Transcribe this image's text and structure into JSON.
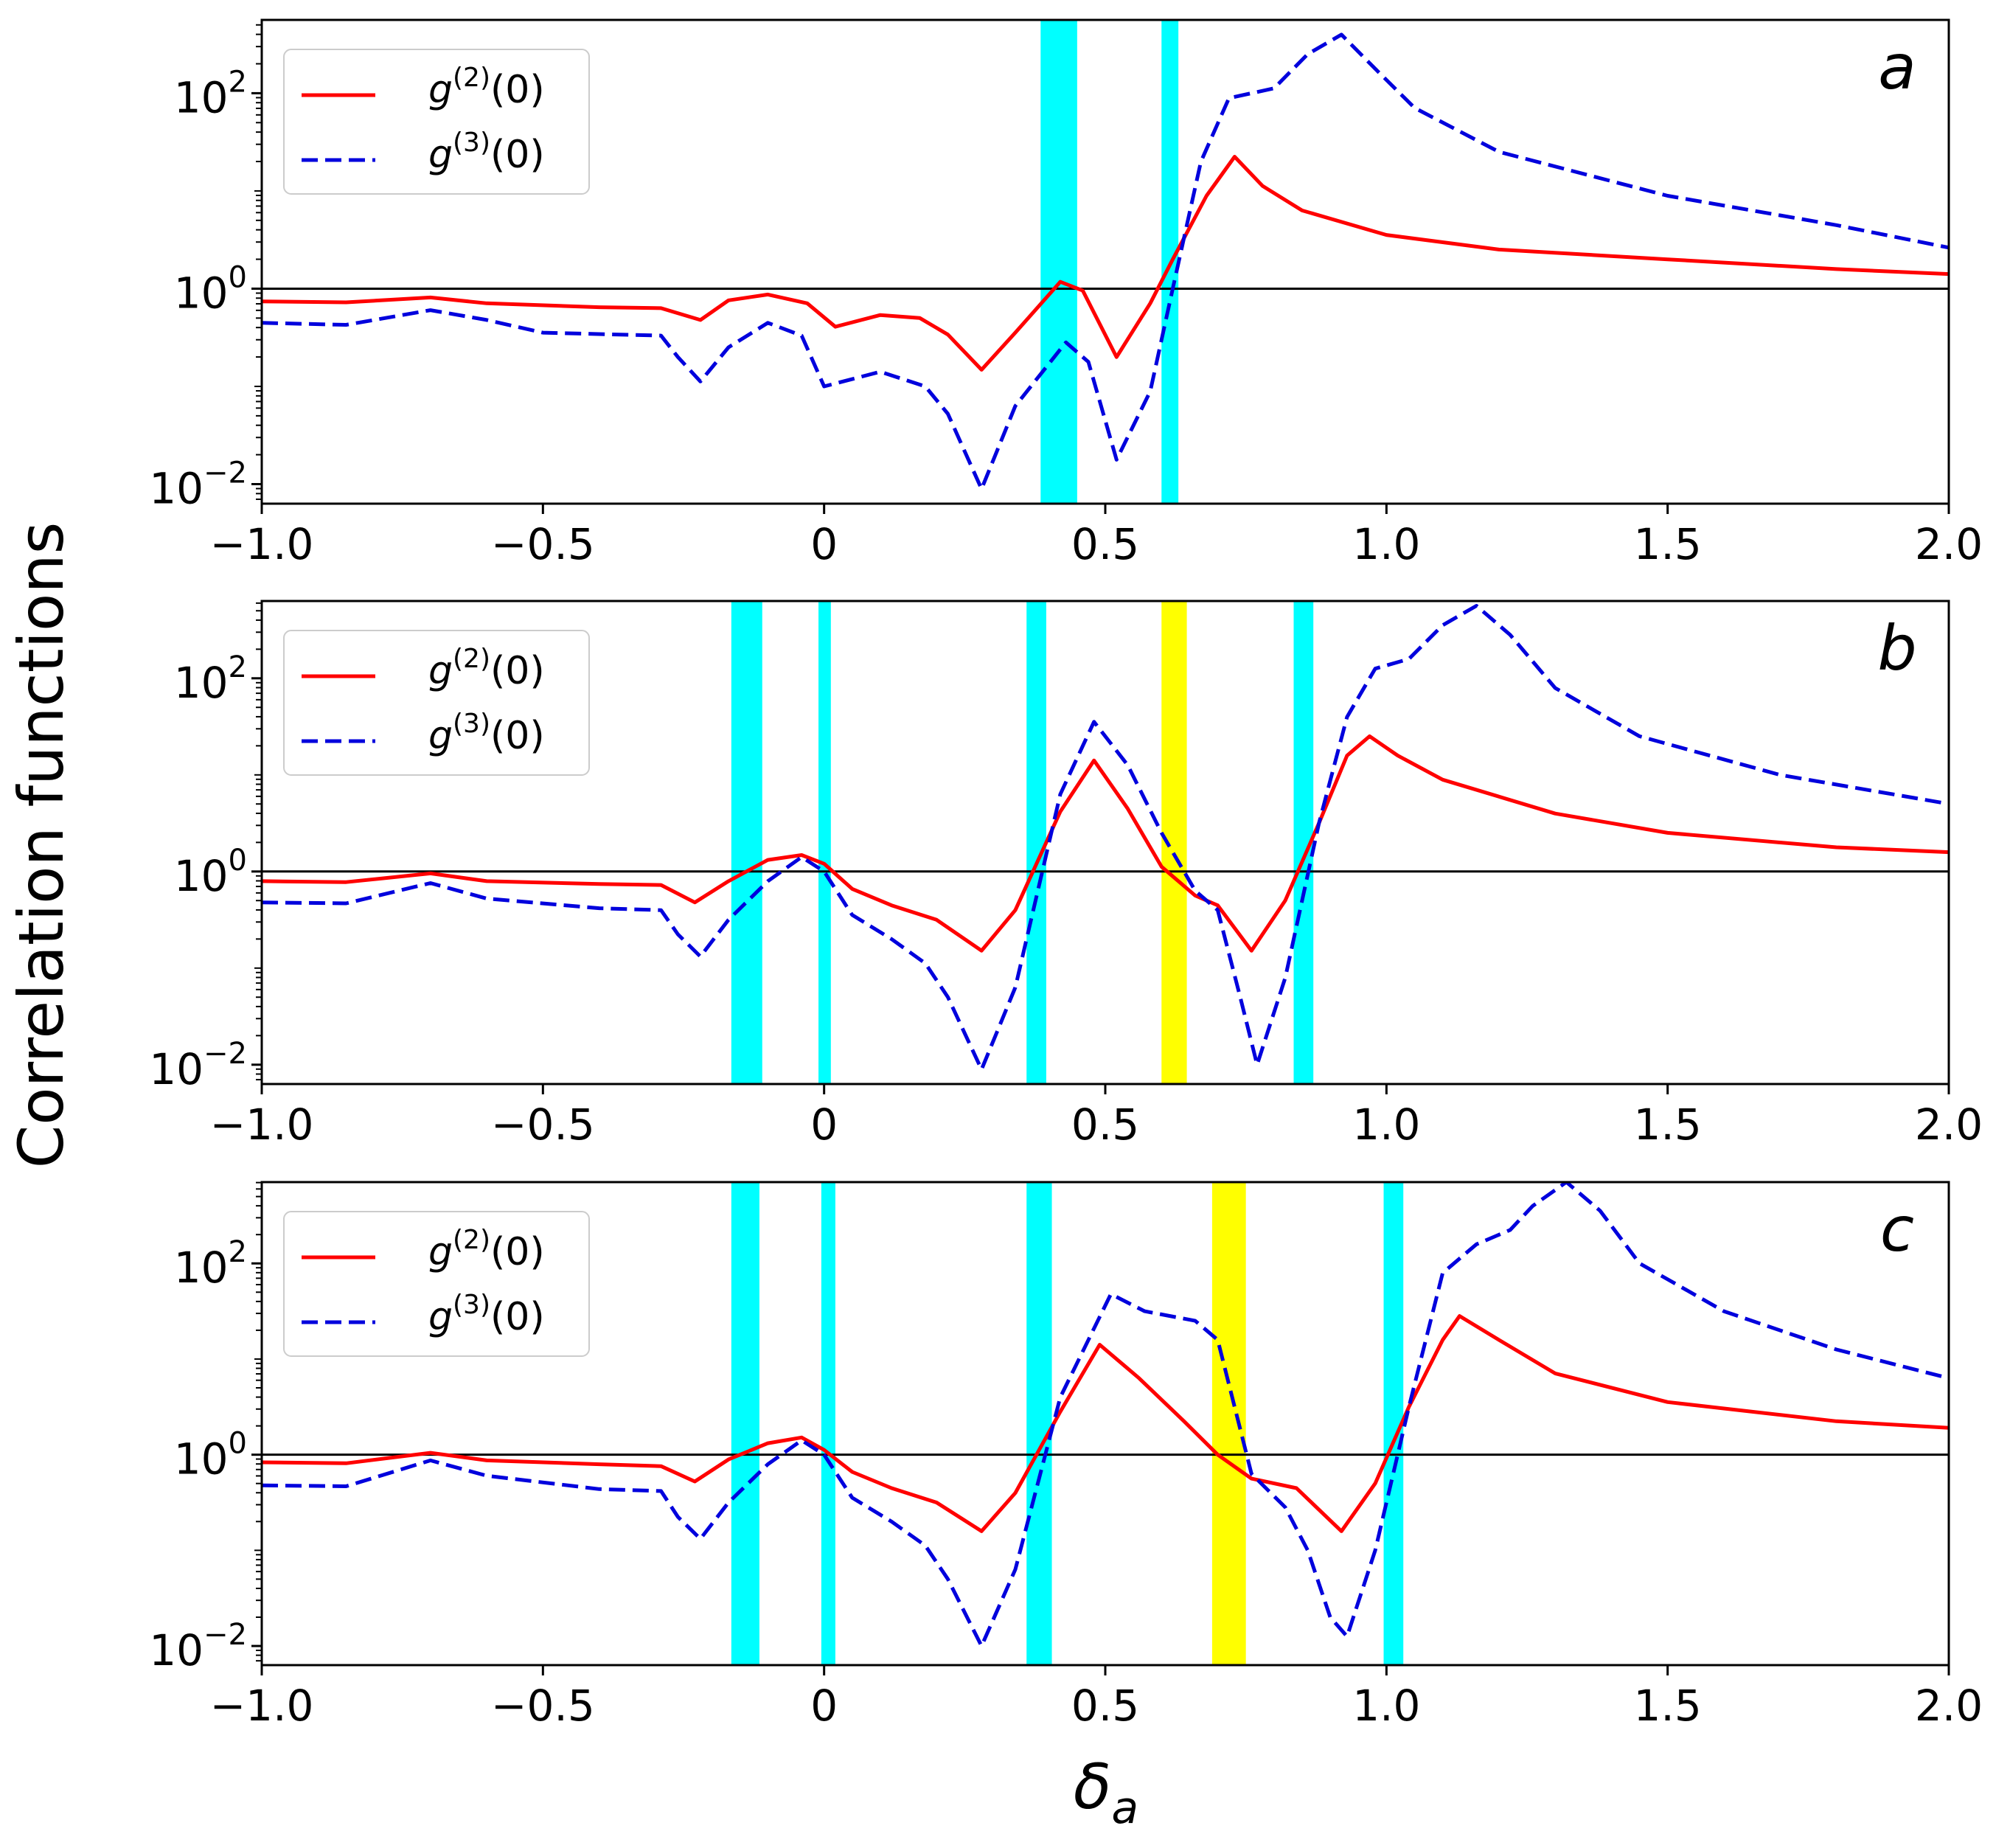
{
  "ylabel": "Correlation functions",
  "xlabel": "δa",
  "xlabel_main": "δ",
  "xlabel_sub": "a",
  "colors": {
    "g2": "#ff0000",
    "g3": "#0000dd",
    "cyan_band": "#00ffff",
    "yellow_band": "#ffff00",
    "reference_line": "#000000"
  },
  "chart_data": [
    {
      "type": "line",
      "panel": "a",
      "xlim": [
        -1.0,
        2.0
      ],
      "ylog": true,
      "ylim_log10": [
        -2.2,
        2.75
      ],
      "x_ticks": [
        "−1.0",
        "−0.5",
        "0",
        "0.5",
        "1.0",
        "1.5",
        "2.0"
      ],
      "y_ticks": [
        "10",
        "10",
        "10"
      ],
      "y_tick_exponents": [
        "2",
        "0",
        "−2"
      ],
      "legend": {
        "g2_base": "g",
        "g2_sup": "(2)",
        "g2_arg": "(0)",
        "g3_base": "g",
        "g3_sup": "(3)",
        "g3_arg": "(0)"
      },
      "bands": [
        {
          "color": "cyan",
          "x0": 0.385,
          "x1": 0.45
        },
        {
          "color": "cyan",
          "x0": 0.6,
          "x1": 0.63
        }
      ],
      "reference_y": 1.0,
      "series": [
        {
          "name": "g(2)(0)",
          "style": "solid",
          "points": [
            [
              -1.0,
              -0.13
            ],
            [
              -0.85,
              -0.14
            ],
            [
              -0.7,
              -0.09
            ],
            [
              -0.6,
              -0.15
            ],
            [
              -0.4,
              -0.19
            ],
            [
              -0.29,
              -0.2
            ],
            [
              -0.22,
              -0.32
            ],
            [
              -0.17,
              -0.12
            ],
            [
              -0.1,
              -0.06
            ],
            [
              -0.03,
              -0.15
            ],
            [
              0.02,
              -0.39
            ],
            [
              0.1,
              -0.27
            ],
            [
              0.17,
              -0.3
            ],
            [
              0.22,
              -0.47
            ],
            [
              0.28,
              -0.83
            ],
            [
              0.34,
              -0.45
            ],
            [
              0.42,
              0.07
            ],
            [
              0.46,
              -0.02
            ],
            [
              0.52,
              -0.7
            ],
            [
              0.58,
              -0.15
            ],
            [
              0.62,
              0.3
            ],
            [
              0.68,
              0.95
            ],
            [
              0.73,
              1.35
            ],
            [
              0.78,
              1.05
            ],
            [
              0.85,
              0.8
            ],
            [
              1.0,
              0.55
            ],
            [
              1.2,
              0.4
            ],
            [
              1.5,
              0.3
            ],
            [
              1.8,
              0.2
            ],
            [
              2.0,
              0.15
            ]
          ]
        },
        {
          "name": "g(3)(0)",
          "style": "dashed",
          "points": [
            [
              -1.0,
              -0.35
            ],
            [
              -0.85,
              -0.37
            ],
            [
              -0.7,
              -0.22
            ],
            [
              -0.6,
              -0.32
            ],
            [
              -0.5,
              -0.45
            ],
            [
              -0.29,
              -0.48
            ],
            [
              -0.26,
              -0.7
            ],
            [
              -0.22,
              -0.95
            ],
            [
              -0.17,
              -0.6
            ],
            [
              -0.1,
              -0.35
            ],
            [
              -0.04,
              -0.48
            ],
            [
              0.0,
              -1.0
            ],
            [
              0.1,
              -0.85
            ],
            [
              0.18,
              -1.0
            ],
            [
              0.22,
              -1.28
            ],
            [
              0.28,
              -2.05
            ],
            [
              0.34,
              -1.2
            ],
            [
              0.43,
              -0.55
            ],
            [
              0.47,
              -0.75
            ],
            [
              0.52,
              -1.75
            ],
            [
              0.58,
              -1.05
            ],
            [
              0.62,
              0.0
            ],
            [
              0.67,
              1.3
            ],
            [
              0.72,
              1.95
            ],
            [
              0.8,
              2.05
            ],
            [
              0.86,
              2.4
            ],
            [
              0.92,
              2.6
            ],
            [
              0.98,
              2.25
            ],
            [
              1.05,
              1.85
            ],
            [
              1.2,
              1.4
            ],
            [
              1.5,
              0.95
            ],
            [
              1.8,
              0.65
            ],
            [
              2.0,
              0.42
            ]
          ]
        }
      ]
    },
    {
      "type": "line",
      "panel": "b",
      "xlim": [
        -1.0,
        2.0
      ],
      "ylog": true,
      "ylim_log10": [
        -2.2,
        2.8
      ],
      "x_ticks": [
        "−1.0",
        "−0.5",
        "0",
        "0.5",
        "1.0",
        "1.5",
        "2.0"
      ],
      "y_ticks": [
        "10",
        "10",
        "10"
      ],
      "y_tick_exponents": [
        "2",
        "0",
        "−2"
      ],
      "legend": {
        "g2_base": "g",
        "g2_sup": "(2)",
        "g2_arg": "(0)",
        "g3_base": "g",
        "g3_sup": "(3)",
        "g3_arg": "(0)"
      },
      "bands": [
        {
          "color": "cyan",
          "x0": -0.165,
          "x1": -0.11
        },
        {
          "color": "cyan",
          "x0": -0.01,
          "x1": 0.012
        },
        {
          "color": "cyan",
          "x0": 0.36,
          "x1": 0.395
        },
        {
          "color": "yellow",
          "x0": 0.6,
          "x1": 0.645
        },
        {
          "color": "cyan",
          "x0": 0.835,
          "x1": 0.87
        }
      ],
      "reference_y": 1.0,
      "series": [
        {
          "name": "g(2)(0)",
          "style": "solid",
          "points": [
            [
              -1.0,
              -0.1
            ],
            [
              -0.85,
              -0.11
            ],
            [
              -0.7,
              -0.02
            ],
            [
              -0.6,
              -0.1
            ],
            [
              -0.4,
              -0.13
            ],
            [
              -0.29,
              -0.14
            ],
            [
              -0.23,
              -0.32
            ],
            [
              -0.17,
              -0.1
            ],
            [
              -0.1,
              0.12
            ],
            [
              -0.04,
              0.17
            ],
            [
              0.0,
              0.08
            ],
            [
              0.05,
              -0.18
            ],
            [
              0.12,
              -0.35
            ],
            [
              0.2,
              -0.5
            ],
            [
              0.28,
              -0.82
            ],
            [
              0.34,
              -0.4
            ],
            [
              0.42,
              0.62
            ],
            [
              0.48,
              1.15
            ],
            [
              0.54,
              0.65
            ],
            [
              0.6,
              0.05
            ],
            [
              0.66,
              -0.25
            ],
            [
              0.7,
              -0.35
            ],
            [
              0.76,
              -0.82
            ],
            [
              0.82,
              -0.3
            ],
            [
              0.88,
              0.5
            ],
            [
              0.93,
              1.2
            ],
            [
              0.97,
              1.4
            ],
            [
              1.02,
              1.2
            ],
            [
              1.1,
              0.95
            ],
            [
              1.3,
              0.6
            ],
            [
              1.5,
              0.4
            ],
            [
              1.8,
              0.25
            ],
            [
              2.0,
              0.2
            ]
          ]
        },
        {
          "name": "g(3)(0)",
          "style": "dashed",
          "points": [
            [
              -1.0,
              -0.32
            ],
            [
              -0.85,
              -0.33
            ],
            [
              -0.7,
              -0.12
            ],
            [
              -0.6,
              -0.28
            ],
            [
              -0.4,
              -0.38
            ],
            [
              -0.29,
              -0.4
            ],
            [
              -0.26,
              -0.65
            ],
            [
              -0.22,
              -0.88
            ],
            [
              -0.17,
              -0.5
            ],
            [
              -0.1,
              -0.1
            ],
            [
              -0.04,
              0.15
            ],
            [
              0.0,
              0.0
            ],
            [
              0.05,
              -0.45
            ],
            [
              0.12,
              -0.7
            ],
            [
              0.18,
              -0.95
            ],
            [
              0.22,
              -1.3
            ],
            [
              0.28,
              -2.05
            ],
            [
              0.34,
              -1.2
            ],
            [
              0.42,
              0.8
            ],
            [
              0.48,
              1.55
            ],
            [
              0.54,
              1.1
            ],
            [
              0.6,
              0.4
            ],
            [
              0.66,
              -0.2
            ],
            [
              0.7,
              -0.4
            ],
            [
              0.74,
              -1.3
            ],
            [
              0.77,
              -2.0
            ],
            [
              0.82,
              -1.1
            ],
            [
              0.88,
              0.5
            ],
            [
              0.93,
              1.6
            ],
            [
              0.98,
              2.1
            ],
            [
              1.04,
              2.2
            ],
            [
              1.1,
              2.55
            ],
            [
              1.16,
              2.75
            ],
            [
              1.22,
              2.45
            ],
            [
              1.3,
              1.9
            ],
            [
              1.45,
              1.4
            ],
            [
              1.7,
              1.0
            ],
            [
              2.0,
              0.7
            ]
          ]
        }
      ]
    },
    {
      "type": "line",
      "panel": "c",
      "xlim": [
        -1.0,
        2.0
      ],
      "ylog": true,
      "ylim_log10": [
        -2.2,
        2.85
      ],
      "x_ticks": [
        "−1.0",
        "−0.5",
        "0",
        "0.5",
        "1.0",
        "1.5",
        "2.0"
      ],
      "y_ticks": [
        "10",
        "10",
        "10"
      ],
      "y_tick_exponents": [
        "2",
        "0",
        "−2"
      ],
      "legend": {
        "g2_base": "g",
        "g2_sup": "(2)",
        "g2_arg": "(0)",
        "g3_base": "g",
        "g3_sup": "(3)",
        "g3_arg": "(0)"
      },
      "bands": [
        {
          "color": "cyan",
          "x0": -0.165,
          "x1": -0.115
        },
        {
          "color": "cyan",
          "x0": -0.005,
          "x1": 0.02
        },
        {
          "color": "cyan",
          "x0": 0.36,
          "x1": 0.405
        },
        {
          "color": "yellow",
          "x0": 0.69,
          "x1": 0.75
        },
        {
          "color": "cyan",
          "x0": 0.995,
          "x1": 1.03
        }
      ],
      "reference_y": 1.0,
      "series": [
        {
          "name": "g(2)(0)",
          "style": "solid",
          "points": [
            [
              -1.0,
              -0.08
            ],
            [
              -0.85,
              -0.09
            ],
            [
              -0.7,
              0.02
            ],
            [
              -0.6,
              -0.06
            ],
            [
              -0.4,
              -0.1
            ],
            [
              -0.29,
              -0.12
            ],
            [
              -0.23,
              -0.28
            ],
            [
              -0.17,
              -0.05
            ],
            [
              -0.1,
              0.12
            ],
            [
              -0.04,
              0.18
            ],
            [
              0.0,
              0.05
            ],
            [
              0.05,
              -0.18
            ],
            [
              0.12,
              -0.35
            ],
            [
              0.2,
              -0.5
            ],
            [
              0.28,
              -0.8
            ],
            [
              0.34,
              -0.4
            ],
            [
              0.42,
              0.45
            ],
            [
              0.49,
              1.15
            ],
            [
              0.56,
              0.8
            ],
            [
              0.64,
              0.35
            ],
            [
              0.7,
              0.0
            ],
            [
              0.76,
              -0.25
            ],
            [
              0.84,
              -0.35
            ],
            [
              0.92,
              -0.8
            ],
            [
              0.98,
              -0.3
            ],
            [
              1.04,
              0.5
            ],
            [
              1.1,
              1.2
            ],
            [
              1.13,
              1.45
            ],
            [
              1.2,
              1.2
            ],
            [
              1.3,
              0.85
            ],
            [
              1.5,
              0.55
            ],
            [
              1.8,
              0.35
            ],
            [
              2.0,
              0.28
            ]
          ]
        },
        {
          "name": "g(3)(0)",
          "style": "dashed",
          "points": [
            [
              -1.0,
              -0.32
            ],
            [
              -0.85,
              -0.33
            ],
            [
              -0.7,
              -0.06
            ],
            [
              -0.6,
              -0.22
            ],
            [
              -0.4,
              -0.36
            ],
            [
              -0.29,
              -0.38
            ],
            [
              -0.26,
              -0.65
            ],
            [
              -0.22,
              -0.88
            ],
            [
              -0.17,
              -0.5
            ],
            [
              -0.1,
              -0.1
            ],
            [
              -0.04,
              0.15
            ],
            [
              0.0,
              0.0
            ],
            [
              0.05,
              -0.45
            ],
            [
              0.12,
              -0.7
            ],
            [
              0.18,
              -0.95
            ],
            [
              0.22,
              -1.3
            ],
            [
              0.28,
              -2.0
            ],
            [
              0.34,
              -1.2
            ],
            [
              0.42,
              0.6
            ],
            [
              0.51,
              1.68
            ],
            [
              0.57,
              1.5
            ],
            [
              0.66,
              1.4
            ],
            [
              0.7,
              1.2
            ],
            [
              0.76,
              -0.2
            ],
            [
              0.82,
              -0.55
            ],
            [
              0.86,
              -1.0
            ],
            [
              0.9,
              -1.7
            ],
            [
              0.93,
              -1.9
            ],
            [
              0.98,
              -1.0
            ],
            [
              1.04,
              0.5
            ],
            [
              1.1,
              1.9
            ],
            [
              1.16,
              2.2
            ],
            [
              1.22,
              2.35
            ],
            [
              1.26,
              2.6
            ],
            [
              1.32,
              2.85
            ],
            [
              1.38,
              2.55
            ],
            [
              1.45,
              2.0
            ],
            [
              1.6,
              1.5
            ],
            [
              1.8,
              1.1
            ],
            [
              2.0,
              0.8
            ]
          ]
        }
      ]
    }
  ]
}
